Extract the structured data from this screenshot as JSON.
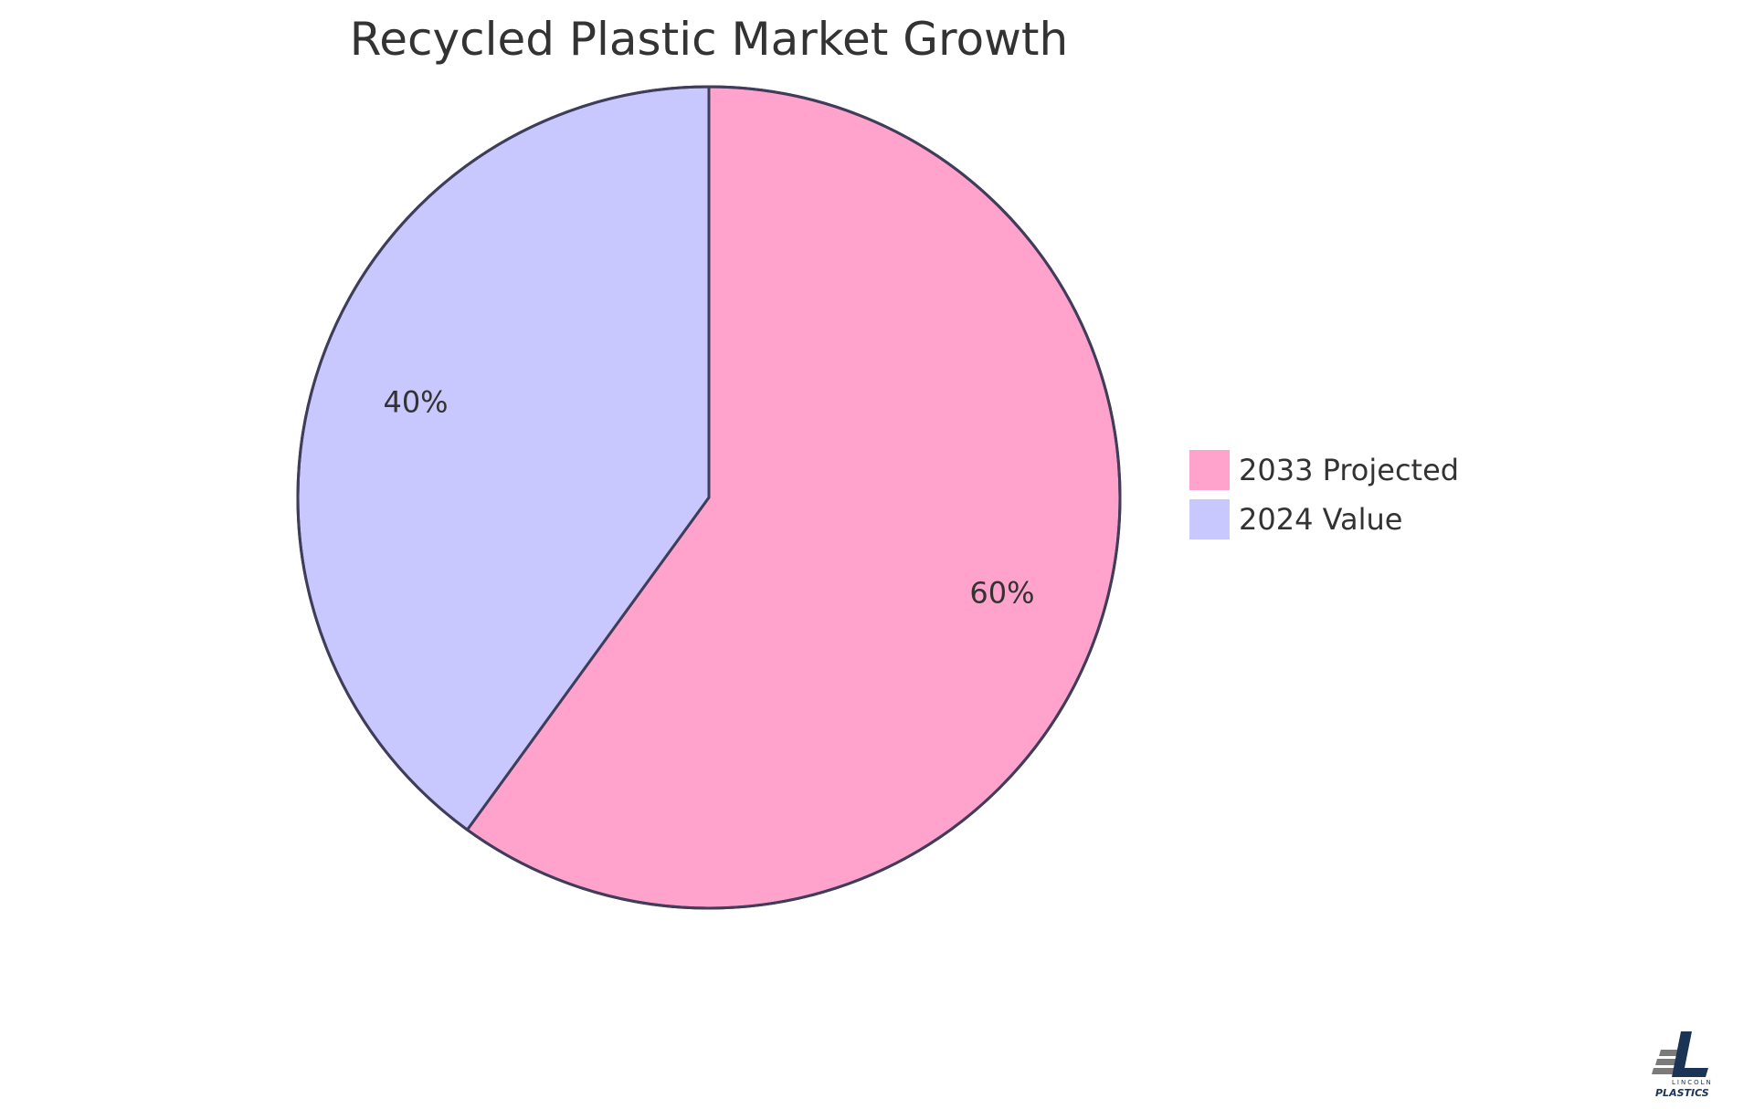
{
  "chart_data": {
    "type": "pie",
    "title": "Recycled Plastic Market Growth",
    "slices": [
      {
        "name": "2033 Projected",
        "value": 60,
        "label": "60%",
        "color": "#FFA3CC"
      },
      {
        "name": "2024 Value",
        "value": 40,
        "label": "40%",
        "color": "#C8C8FF"
      }
    ],
    "legend_placement": "right",
    "stroke_color": "#3F3D5A"
  },
  "logo": {
    "top_text": "LINCOLN",
    "bottom_text": "PLASTICS",
    "accent_color": "#1B3455",
    "secondary_color": "#7A7A7A"
  }
}
